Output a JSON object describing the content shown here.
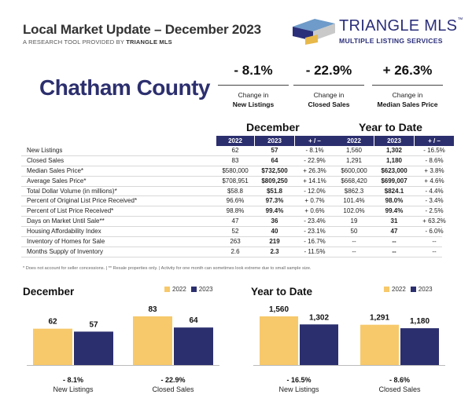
{
  "header": {
    "title": "Local Market Update – December 2023",
    "subtitle_prefix": "A RESEARCH TOOL PROVIDED BY",
    "subtitle_brand": "TRIANGLE MLS"
  },
  "logo": {
    "name": "TRIANGLE MLS",
    "trademark": "™",
    "tagline": "MULTIPLE LISTING SERVICES",
    "colors": [
      "#6e9bc9",
      "#2b2f7a",
      "#c9c9c9",
      "#e8b94a"
    ]
  },
  "county": "Chatham County",
  "kpis": [
    {
      "value": "- 8.1%",
      "line1": "Change in",
      "line2": "New Listings"
    },
    {
      "value": "- 22.9%",
      "line1": "Change in",
      "line2": "Closed Sales"
    },
    {
      "value": "+ 26.3%",
      "line1": "Change in",
      "line2": "Median Sales Price"
    }
  ],
  "table": {
    "section_month": "December",
    "section_ytd": "Year to Date",
    "columns": [
      "2022",
      "2023",
      "+ / –",
      "2022",
      "2023",
      "+ / –"
    ],
    "rows": [
      {
        "label": "New Listings",
        "values": [
          "62",
          "57",
          "- 8.1%",
          "1,560",
          "1,302",
          "- 16.5%"
        ]
      },
      {
        "label": "Closed Sales",
        "values": [
          "83",
          "64",
          "- 22.9%",
          "1,291",
          "1,180",
          "- 8.6%"
        ]
      },
      {
        "label": "Median Sales Price*",
        "values": [
          "$580,000",
          "$732,500",
          "+ 26.3%",
          "$600,000",
          "$623,000",
          "+ 3.8%"
        ]
      },
      {
        "label": "Average Sales Price*",
        "values": [
          "$708,951",
          "$809,250",
          "+ 14.1%",
          "$668,420",
          "$699,007",
          "+ 4.6%"
        ]
      },
      {
        "label": "Total Dollar Volume (in millions)*",
        "values": [
          "$58.8",
          "$51.8",
          "- 12.0%",
          "$862.3",
          "$824.1",
          "- 4.4%"
        ]
      },
      {
        "label": "Percent of Original List Price Received*",
        "values": [
          "96.6%",
          "97.3%",
          "+ 0.7%",
          "101.4%",
          "98.0%",
          "- 3.4%"
        ]
      },
      {
        "label": "Percent of List Price Received*",
        "values": [
          "98.8%",
          "99.4%",
          "+ 0.6%",
          "102.0%",
          "99.4%",
          "- 2.5%"
        ]
      },
      {
        "label": "Days on Market Until Sale**",
        "values": [
          "47",
          "36",
          "- 23.4%",
          "19",
          "31",
          "+ 63.2%"
        ]
      },
      {
        "label": "Housing Affordability Index",
        "values": [
          "52",
          "40",
          "- 23.1%",
          "50",
          "47",
          "- 6.0%"
        ]
      },
      {
        "label": "Inventory of Homes for Sale",
        "values": [
          "263",
          "219",
          "- 16.7%",
          "--",
          "--",
          "--"
        ]
      },
      {
        "label": "Months Supply of Inventory",
        "values": [
          "2.6",
          "2.3",
          "- 11.5%",
          "--",
          "--",
          "--"
        ]
      }
    ]
  },
  "footnote": "* Does not account for seller concessions.  |  ** Resale properties only.  |  Activity for one month can sometimes look extreme due to small sample size.",
  "colors": {
    "y2022": "#f7c96b",
    "y2023": "#2c2f6e",
    "navy": "#2c2f6e"
  },
  "chart_data": [
    {
      "type": "bar",
      "title": "December",
      "legend_position": "top-right",
      "categories": [
        "New Listings",
        "Closed Sales"
      ],
      "changes": [
        "- 8.1%",
        "- 22.9%"
      ],
      "series": [
        {
          "name": "2022",
          "values": [
            62,
            83
          ],
          "labels": [
            "62",
            "83"
          ]
        },
        {
          "name": "2023",
          "values": [
            57,
            64
          ],
          "labels": [
            "57",
            "64"
          ]
        }
      ]
    },
    {
      "type": "bar",
      "title": "Year to Date",
      "legend_position": "top-right",
      "categories": [
        "New Listings",
        "Closed Sales"
      ],
      "changes": [
        "- 16.5%",
        "- 8.6%"
      ],
      "series": [
        {
          "name": "2022",
          "values": [
            1560,
            1291
          ],
          "labels": [
            "1,560",
            "1,291"
          ]
        },
        {
          "name": "2023",
          "values": [
            1302,
            1180
          ],
          "labels": [
            "1,302",
            "1,180"
          ]
        }
      ]
    }
  ]
}
